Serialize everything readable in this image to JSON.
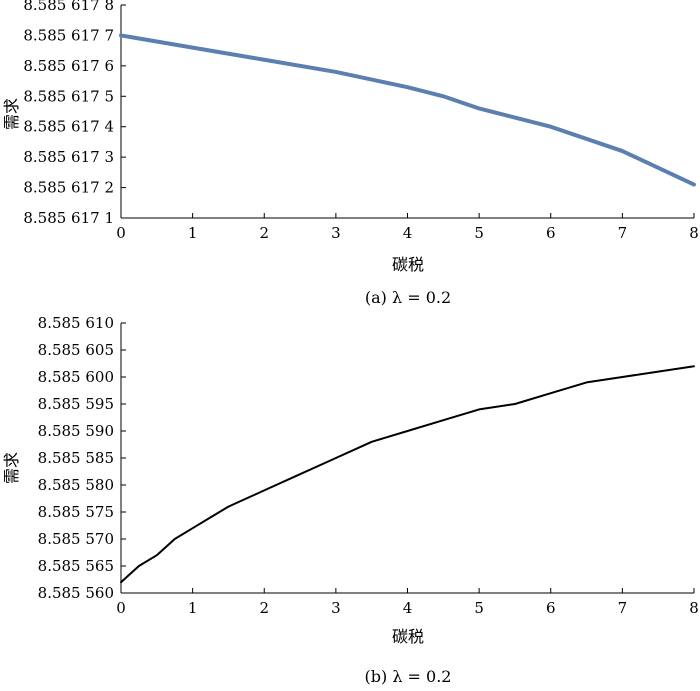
{
  "chart_data": [
    {
      "type": "line",
      "caption": "(a) λ = 0.2",
      "xlabel": "碳税",
      "ylabel": "需求",
      "xlim": [
        0,
        8
      ],
      "ylim": [
        8.5856171,
        8.5856178
      ],
      "x_ticks": [
        "0",
        "1",
        "2",
        "3",
        "4",
        "5",
        "6",
        "7",
        "8"
      ],
      "y_ticks": [
        "8.585 617 1",
        "8.585 617 2",
        "8.585 617 3",
        "8.585 617 4",
        "8.585 617 5",
        "8.585 617 6",
        "8.585 617 7",
        "8.585 617 8"
      ],
      "line_color": "#5b7fb0",
      "series": [
        {
          "x": [
            0,
            1,
            2,
            3,
            4,
            4.5,
            5,
            6,
            7,
            8
          ],
          "values": [
            8.5856177,
            8.58561766,
            8.58561762,
            8.58561758,
            8.58561753,
            8.5856175,
            8.58561746,
            8.5856174,
            8.58561732,
            8.58561721
          ]
        }
      ]
    },
    {
      "type": "line",
      "caption": "(b) λ = 0.2",
      "xlabel": "碳税",
      "ylabel": "需求",
      "xlim": [
        0,
        8
      ],
      "ylim": [
        8.58556,
        8.58561
      ],
      "x_ticks": [
        "0",
        "1",
        "2",
        "3",
        "4",
        "5",
        "6",
        "7",
        "8"
      ],
      "y_ticks": [
        "8.585 560",
        "8.585 565",
        "8.585 570",
        "8.585 575",
        "8.585 580",
        "8.585 585",
        "8.585 590",
        "8.585 595",
        "8.585 600",
        "8.585 605",
        "8.585 610"
      ],
      "line_color": "#000000",
      "series": [
        {
          "x": [
            0,
            0.25,
            0.5,
            0.75,
            1,
            1.25,
            1.5,
            2,
            2.5,
            3,
            3.5,
            4,
            4.5,
            5,
            5.5,
            6,
            6.5,
            7,
            7.5,
            8
          ],
          "values": [
            8.585562,
            8.585565,
            8.585567,
            8.58557,
            8.585572,
            8.585574,
            8.585576,
            8.585579,
            8.585582,
            8.585585,
            8.585588,
            8.58559,
            8.585592,
            8.585594,
            8.585595,
            8.585597,
            8.585599,
            8.5856,
            8.585601,
            8.585602
          ]
        }
      ]
    }
  ]
}
